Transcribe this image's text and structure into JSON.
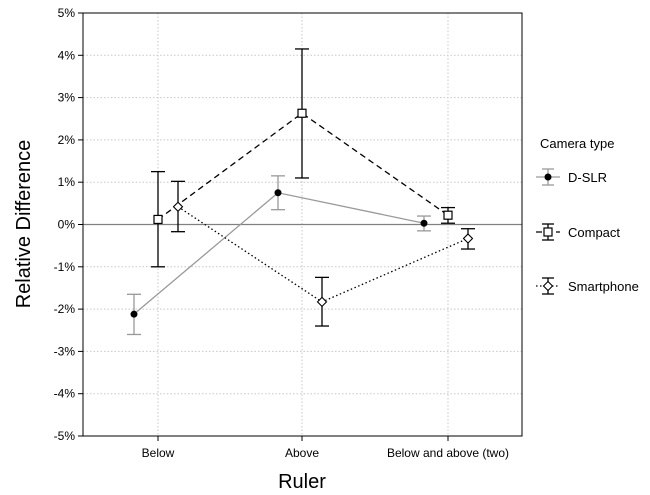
{
  "chart_data": {
    "type": "line",
    "title": "",
    "xlabel": "Ruler",
    "ylabel": "Relative Difference",
    "categories": [
      "Below",
      "Above",
      "Below and above (two)"
    ],
    "ylim": [
      -5,
      5
    ],
    "yticks": [
      "5%",
      "4%",
      "3%",
      "2%",
      "1%",
      "0%",
      "-1%",
      "-2%",
      "-3%",
      "-4%",
      "-5%"
    ],
    "grid": true,
    "reference_line": 0,
    "legend": {
      "title": "Camera type",
      "placement": "right"
    },
    "series": [
      {
        "name": "D-SLR",
        "color": "#999999",
        "line_style": "solid",
        "marker": "filled-circle",
        "values": [
          -2.12,
          0.75,
          0.03
        ],
        "error_low": [
          -2.6,
          0.35,
          -0.15
        ],
        "error_high": [
          -1.65,
          1.15,
          0.2
        ]
      },
      {
        "name": "Compact",
        "color": "#000000",
        "line_style": "dashed",
        "marker": "open-square",
        "values": [
          0.12,
          2.63,
          0.22
        ],
        "error_low": [
          -1.0,
          1.1,
          0.03
        ],
        "error_high": [
          1.25,
          4.15,
          0.4
        ]
      },
      {
        "name": "Smartphone",
        "color": "#000000",
        "line_style": "dotted",
        "marker": "open-diamond",
        "values": [
          0.42,
          -1.83,
          -0.33
        ],
        "error_low": [
          -0.17,
          -2.4,
          -0.58
        ],
        "error_high": [
          1.02,
          -1.25,
          -0.1
        ]
      }
    ]
  }
}
